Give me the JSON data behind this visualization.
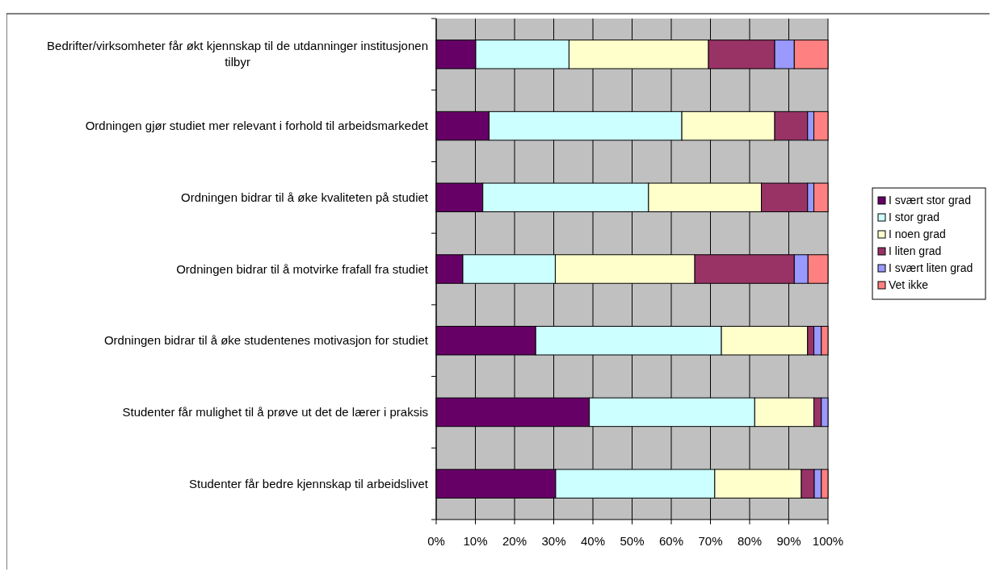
{
  "chart_data": {
    "type": "bar",
    "orientation": "horizontal",
    "stacked": true,
    "categories": [
      "Bedrifter/virksomheter får økt kjennskap til de utdanninger institusjonen tilbyr",
      "Ordningen gjør studiet mer relevant i forhold til arbeidsmarkedet",
      "Ordningen bidrar til å øke kvaliteten på studiet",
      "Ordningen bidrar til å motvirke frafall fra studiet",
      "Ordningen bidrar til å øke studentenes motivasjon for studiet",
      "Studenter får mulighet til å prøve ut det de lærer i praksis",
      "Studenter får bedre kjennskap til arbeidslivet"
    ],
    "series": [
      {
        "name": "I svært stor grad",
        "color": "#660066",
        "values": [
          10.1,
          13.5,
          11.9,
          6.8,
          25.4,
          39.1,
          30.5
        ]
      },
      {
        "name": "I stor grad",
        "color": "#ccffff",
        "values": [
          23.8,
          49.2,
          42.3,
          23.6,
          47.4,
          42.2,
          40.6
        ]
      },
      {
        "name": "I noen grad",
        "color": "#ffffcc",
        "values": [
          35.6,
          23.7,
          28.8,
          35.6,
          22.0,
          15.1,
          22.1
        ]
      },
      {
        "name": "I liten grad",
        "color": "#993366",
        "values": [
          16.9,
          8.4,
          11.8,
          25.4,
          1.6,
          1.9,
          3.3
        ]
      },
      {
        "name": "I svært liten grad",
        "color": "#9999ff",
        "values": [
          5.0,
          1.6,
          1.6,
          3.5,
          1.9,
          1.7,
          1.8
        ]
      },
      {
        "name": "Vet ikke",
        "color": "#ff8080",
        "values": [
          8.6,
          3.6,
          3.6,
          5.1,
          1.7,
          0,
          1.7
        ]
      }
    ],
    "xlim": [
      0,
      100
    ],
    "xticks": [
      {
        "value": 0,
        "label": "0%"
      },
      {
        "value": 10,
        "label": "10%"
      },
      {
        "value": 20,
        "label": "20%"
      },
      {
        "value": 30,
        "label": "30%"
      },
      {
        "value": 40,
        "label": "40%"
      },
      {
        "value": 50,
        "label": "50%"
      },
      {
        "value": 60,
        "label": "60%"
      },
      {
        "value": 70,
        "label": "70%"
      },
      {
        "value": 80,
        "label": "80%"
      },
      {
        "value": 90,
        "label": "90%"
      },
      {
        "value": 100,
        "label": "100%"
      }
    ],
    "grid": "x",
    "legend": "right"
  }
}
